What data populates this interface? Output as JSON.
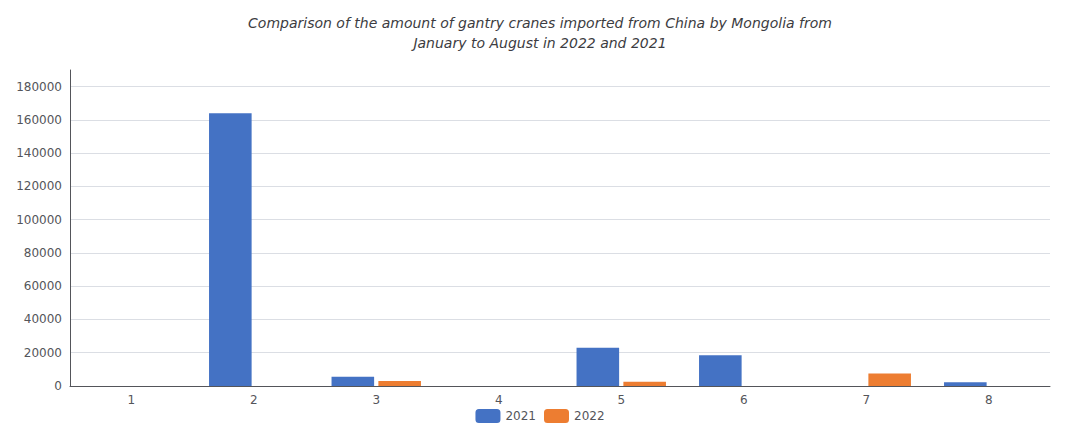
{
  "chart_data": {
    "type": "bar",
    "title": "Comparison of the amount of gantry cranes imported from China by Mongolia from\nJanuary to August in 2022 and 2021",
    "categories": [
      1,
      2,
      3,
      4,
      5,
      6,
      7,
      8
    ],
    "series": [
      {
        "name": "2021",
        "color": "#4472C4",
        "values": [
          0,
          164000,
          5500,
          0,
          23000,
          18500,
          0,
          2200
        ]
      },
      {
        "name": "2022",
        "color": "#ED7D31",
        "values": [
          0,
          0,
          3000,
          0,
          2500,
          0,
          7500,
          0
        ]
      }
    ],
    "ylim": [
      0,
      190000
    ],
    "yticks": [
      0,
      20000,
      40000,
      60000,
      80000,
      100000,
      120000,
      140000,
      160000,
      180000
    ],
    "grid": true,
    "legend": "bottom"
  }
}
